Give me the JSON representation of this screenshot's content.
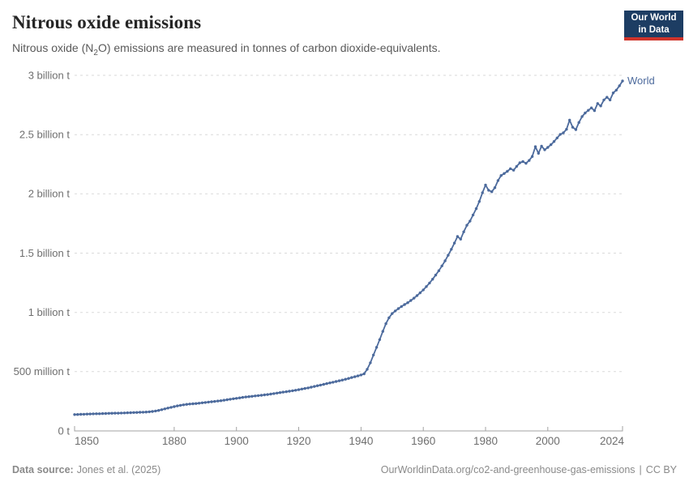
{
  "header": {
    "title": "Nitrous oxide emissions",
    "subtitle": {
      "pre": "Nitrous oxide (N",
      "sub": "2",
      "post": "O) emissions are measured in tonnes of carbon dioxide-equivalents."
    },
    "logo": {
      "line1": "Our World",
      "line2": "in Data",
      "bg_color": "#1d3d63",
      "bar_color": "#cf342b"
    }
  },
  "footer": {
    "source_label": "Data source:",
    "source_value": "Jones et al. (2025)",
    "link": "OurWorldinData.org/co2-and-greenhouse-gas-emissions",
    "divider": "|",
    "license": "CC BY"
  },
  "chart_data": {
    "type": "line",
    "title": "Nitrous oxide emissions",
    "ylabel": "",
    "xlabel": "",
    "unit": "tonnes of carbon dioxide-equivalents",
    "grid": "horizontal dashed",
    "legend_position": "end-of-line label",
    "xlim": [
      1848,
      2024
    ],
    "ylim": [
      0,
      3000
    ],
    "end_label": "World",
    "yticks": [
      {
        "v": 0,
        "label": "0 t"
      },
      {
        "v": 500,
        "label": "500 million t"
      },
      {
        "v": 1000,
        "label": "1 billion t"
      },
      {
        "v": 1500,
        "label": "1.5 billion t"
      },
      {
        "v": 2000,
        "label": "2 billion t"
      },
      {
        "v": 2500,
        "label": "2.5 billion t"
      },
      {
        "v": 3000,
        "label": "3 billion t"
      }
    ],
    "xticks": [
      1850,
      1880,
      1900,
      1920,
      1940,
      1960,
      1980,
      2000,
      2024
    ],
    "value_unit_millions_t": true,
    "series": [
      {
        "name": "World",
        "color": "#4C6A9C",
        "x_start": 1848,
        "x_step": 1,
        "values": [
          138,
          139,
          140,
          141,
          142,
          143,
          144,
          145,
          145,
          146,
          147,
          148,
          149,
          150,
          150,
          151,
          152,
          153,
          154,
          155,
          156,
          157,
          158,
          159,
          161,
          164,
          168,
          173,
          179,
          186,
          193,
          199,
          205,
          211,
          216,
          220,
          224,
          227,
          229,
          231,
          234,
          237,
          240,
          243,
          246,
          249,
          252,
          255,
          259,
          263,
          267,
          271,
          275,
          279,
          283,
          286,
          289,
          292,
          295,
          298,
          301,
          304,
          307,
          311,
          315,
          319,
          323,
          327,
          331,
          335,
          339,
          343,
          348,
          353,
          358,
          363,
          369,
          375,
          381,
          387,
          393,
          399,
          405,
          411,
          417,
          423,
          429,
          436,
          443,
          450,
          457,
          464,
          472,
          482,
          520,
          575,
          640,
          705,
          770,
          840,
          905,
          955,
          990,
          1012,
          1032,
          1050,
          1066,
          1082,
          1100,
          1120,
          1142,
          1165,
          1190,
          1218,
          1248,
          1280,
          1315,
          1352,
          1392,
          1435,
          1482,
          1532,
          1585,
          1640,
          1618,
          1680,
          1735,
          1770,
          1822,
          1875,
          1935,
          2010,
          2075,
          2030,
          2018,
          2052,
          2112,
          2155,
          2172,
          2190,
          2212,
          2200,
          2232,
          2262,
          2272,
          2258,
          2282,
          2315,
          2398,
          2342,
          2402,
          2372,
          2392,
          2415,
          2442,
          2472,
          2502,
          2515,
          2545,
          2622,
          2562,
          2542,
          2602,
          2652,
          2682,
          2705,
          2725,
          2702,
          2762,
          2742,
          2792,
          2815,
          2792,
          2852,
          2875,
          2912,
          2952
        ]
      }
    ]
  }
}
